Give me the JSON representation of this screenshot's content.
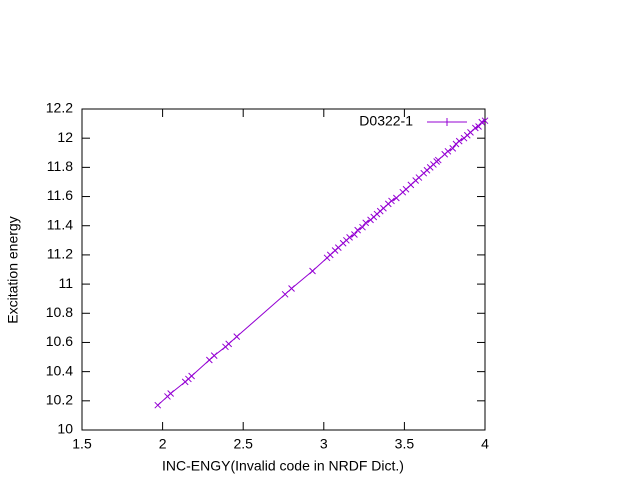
{
  "chart_data": {
    "type": "line",
    "x_label": "INC-ENGY(Invalid code in NRDF Dict.)",
    "y_label": "Excitation energy",
    "x": [
      1.97,
      2.03,
      2.05,
      2.14,
      2.16,
      2.18,
      2.29,
      2.32,
      2.39,
      2.41,
      2.46,
      2.76,
      2.8,
      2.93,
      3.02,
      3.04,
      3.07,
      3.09,
      3.12,
      3.14,
      3.16,
      3.19,
      3.21,
      3.24,
      3.26,
      3.29,
      3.31,
      3.33,
      3.35,
      3.37,
      3.4,
      3.42,
      3.45,
      3.49,
      3.51,
      3.54,
      3.57,
      3.59,
      3.62,
      3.64,
      3.66,
      3.68,
      3.7,
      3.71,
      3.75,
      3.77,
      3.8,
      3.82,
      3.84,
      3.87,
      3.89,
      3.91,
      3.94,
      3.96,
      3.98,
      4.0
    ],
    "series": [
      {
        "name": "D0322-1",
        "color": "#9400d3",
        "values": [
          10.17,
          10.23,
          10.25,
          10.33,
          10.35,
          10.37,
          10.48,
          10.51,
          10.57,
          10.59,
          10.64,
          10.93,
          10.97,
          11.09,
          11.18,
          11.2,
          11.23,
          11.25,
          11.28,
          11.3,
          11.32,
          11.34,
          11.37,
          11.39,
          11.42,
          11.44,
          11.46,
          11.48,
          11.5,
          11.52,
          11.55,
          11.57,
          11.59,
          11.63,
          11.65,
          11.68,
          11.71,
          11.73,
          11.76,
          11.78,
          11.8,
          11.82,
          11.84,
          11.85,
          11.89,
          11.91,
          11.93,
          11.96,
          11.98,
          12.0,
          12.02,
          12.04,
          12.07,
          12.08,
          12.11,
          12.12
        ]
      }
    ],
    "xlim": [
      1.5,
      4
    ],
    "xticks": [
      1.5,
      2,
      2.5,
      3,
      3.5,
      4
    ],
    "ylim": [
      10,
      12.2
    ],
    "yticks": [
      10,
      10.2,
      10.4,
      10.6,
      10.8,
      11,
      11.2,
      11.4,
      11.6,
      11.8,
      12,
      12.2
    ],
    "legend_position": "top right"
  }
}
